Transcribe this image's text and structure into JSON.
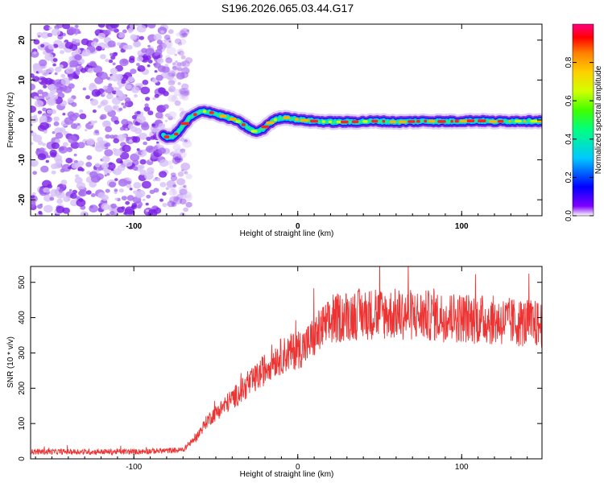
{
  "title": "S196.2026.065.03.44.G17",
  "chart_data": [
    {
      "type": "heatmap",
      "title": "S196.2026.065.03.44.G17",
      "xlabel": "Height of straight line (km)",
      "ylabel": "Frequency (Hz)",
      "xlim": [
        -163,
        149
      ],
      "ylim": [
        -24,
        24
      ],
      "x_ticks": [
        -100,
        0,
        100
      ],
      "y_ticks": [
        20,
        10,
        0,
        -10,
        -20
      ],
      "noise_region_x": [
        -163,
        -72
      ],
      "trace": {
        "x": [
          -82,
          -78,
          -74,
          -70,
          -66,
          -62,
          -58,
          -54,
          -50,
          -46,
          -42,
          -38,
          -34,
          -30,
          -26,
          -22,
          -18,
          -14,
          -10,
          -6,
          -2,
          2,
          10,
          20,
          30,
          40,
          50,
          60,
          70,
          80,
          90,
          100,
          110,
          120,
          130,
          140,
          149
        ],
        "y": [
          -4,
          -4.5,
          -3.5,
          -1.5,
          0.5,
          1.5,
          2.2,
          2,
          1.5,
          1,
          0.5,
          0,
          -1,
          -2,
          -3,
          -2.5,
          -1,
          0,
          0.5,
          0.6,
          0.2,
          0,
          -0.3,
          -0.5,
          -0.5,
          -0.4,
          -0.3,
          -0.5,
          -0.4,
          -0.3,
          -0.4,
          -0.3,
          -0.2,
          -0.4,
          -0.3,
          -0.3,
          -0.3
        ]
      },
      "colorbar": {
        "label": "Normalized spectral amplitude",
        "range": [
          0,
          1
        ],
        "ticks": [
          "0.0",
          "0.2",
          "0.4",
          "0.6",
          "0.8"
        ],
        "colors": [
          "#ffffff",
          "#8000ff",
          "#0000ff",
          "#00c8ff",
          "#00ff80",
          "#40ff00",
          "#d0ff00",
          "#ffd000",
          "#ff8000",
          "#ff0000",
          "#ff0080"
        ]
      }
    },
    {
      "type": "line",
      "xlabel": "Height of straight line (km)",
      "ylabel": "SNR (10 * v/v)",
      "xlim": [
        -163,
        149
      ],
      "ylim": [
        0,
        545
      ],
      "x_ticks": [
        -100,
        0,
        100
      ],
      "y_ticks": [
        0,
        100,
        200,
        300,
        400,
        500
      ],
      "color": "#ee3333",
      "trend": {
        "x": [
          -163,
          -100,
          -70,
          -62,
          -55,
          -45,
          -35,
          -25,
          -15,
          -5,
          5,
          15,
          25,
          35,
          60,
          100,
          149
        ],
        "y": [
          20,
          20,
          25,
          60,
          110,
          150,
          190,
          230,
          280,
          300,
          320,
          370,
          400,
          410,
          410,
          400,
          380
        ]
      }
    }
  ]
}
